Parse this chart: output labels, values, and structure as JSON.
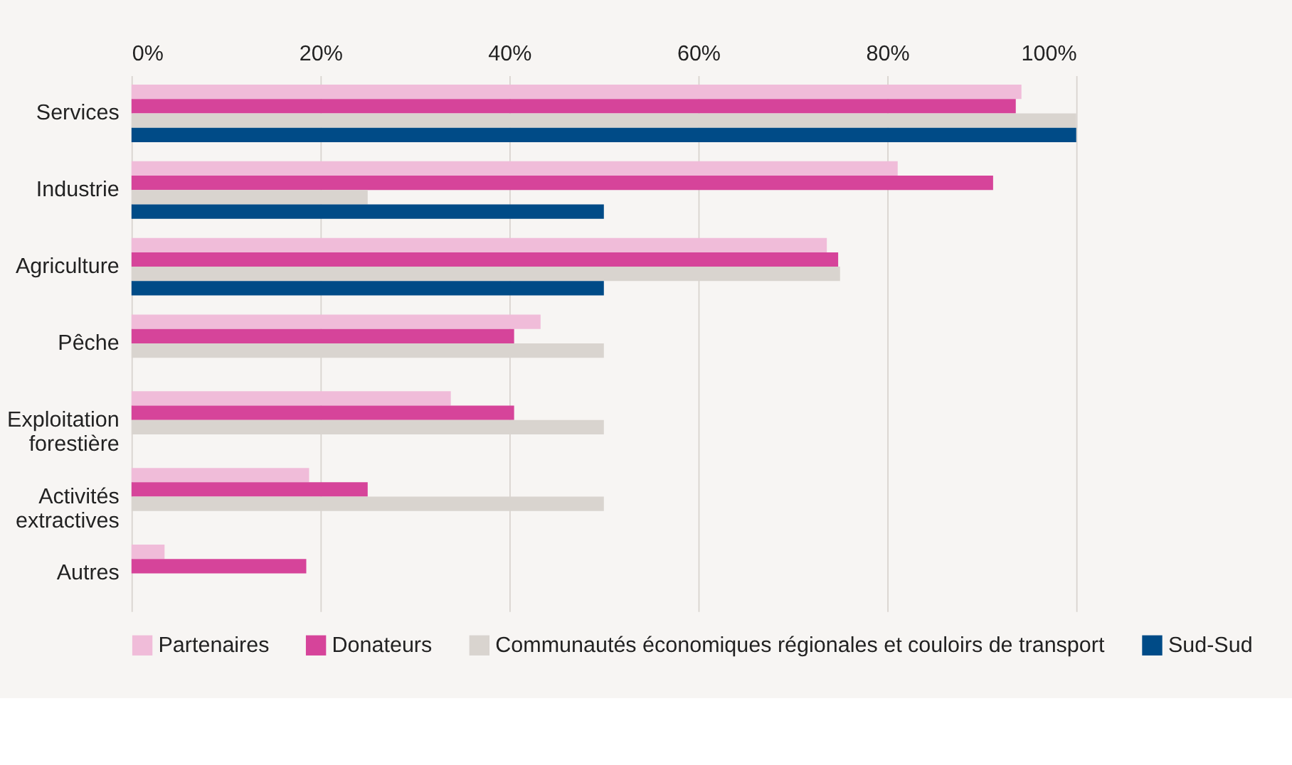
{
  "chart_data": {
    "type": "bar",
    "orientation": "horizontal",
    "categories": [
      "Services",
      "Industrie",
      "Agriculture",
      "Pêche",
      "Exploitation forestière",
      "Activités extractives",
      "Autres"
    ],
    "series": [
      {
        "name": "Partenaires",
        "color": "#f0bcd9",
        "values": [
          94.2,
          81.1,
          73.6,
          43.3,
          33.8,
          18.8,
          3.5
        ]
      },
      {
        "name": "Donateurs",
        "color": "#d6449a",
        "values": [
          93.6,
          91.2,
          74.8,
          40.5,
          40.5,
          25,
          18.5
        ]
      },
      {
        "name": "Communautés économiques régionales et couloirs de transport",
        "color": "#d9d4cf",
        "values": [
          100,
          25,
          75,
          50,
          50,
          50,
          null
        ]
      },
      {
        "name": "Sud-Sud",
        "color": "#004b87",
        "values": [
          100,
          50,
          50,
          null,
          null,
          null,
          null
        ]
      }
    ],
    "xlim": [
      0,
      100
    ],
    "xticks": [
      {
        "value": 0,
        "label": "0%"
      },
      {
        "value": 20,
        "label": "20%"
      },
      {
        "value": 40,
        "label": "40%"
      },
      {
        "value": 60,
        "label": "60%"
      },
      {
        "value": 80,
        "label": "80%"
      },
      {
        "value": 100,
        "label": "100%"
      }
    ],
    "grid": "x",
    "legend": "bottom"
  }
}
